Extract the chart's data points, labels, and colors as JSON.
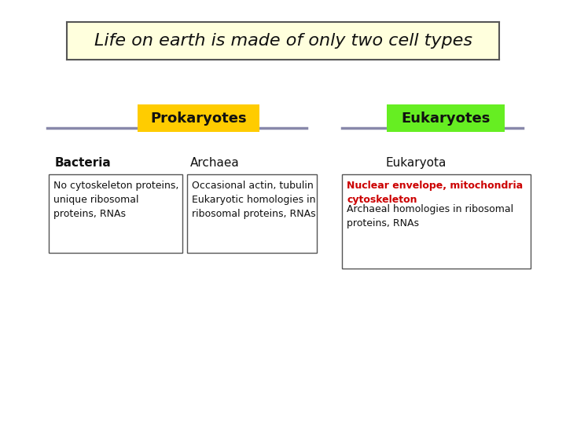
{
  "title": "Life on earth is made of only two cell types",
  "title_bg": "#ffffdd",
  "title_border": "#555555",
  "title_fontsize": 16,
  "bg_color": "#ffffff",
  "prokaryotes_label": "Prokaryotes",
  "prokaryotes_label_bg": "#ffcc00",
  "eukaryotes_label": "Eukaryotes",
  "eukaryotes_label_bg": "#66ee22",
  "line_color": "#8888aa",
  "bacteria_header": "Bacteria",
  "archaea_header": "Archaea",
  "eukaryota_header": "Eukaryota",
  "bacteria_text": "No cytoskeleton proteins,\nunique ribosomal\nproteins, RNAs",
  "archaea_text": "Occasional actin, tubulin\nEukaryotic homologies in\nribosomal proteins, RNAs",
  "eukaryota_text_red": "Nuclear envelope, mitochondria\ncytoskeleton",
  "eukaryota_text_black": "Archaeal homologies in ribosomal\nproteins, RNAs",
  "box_border": "#555555",
  "header_fontsize": 11,
  "label_fontsize": 13,
  "body_fontsize": 9,
  "red_color": "#cc0000",
  "black_color": "#111111",
  "header_color": "#111111"
}
